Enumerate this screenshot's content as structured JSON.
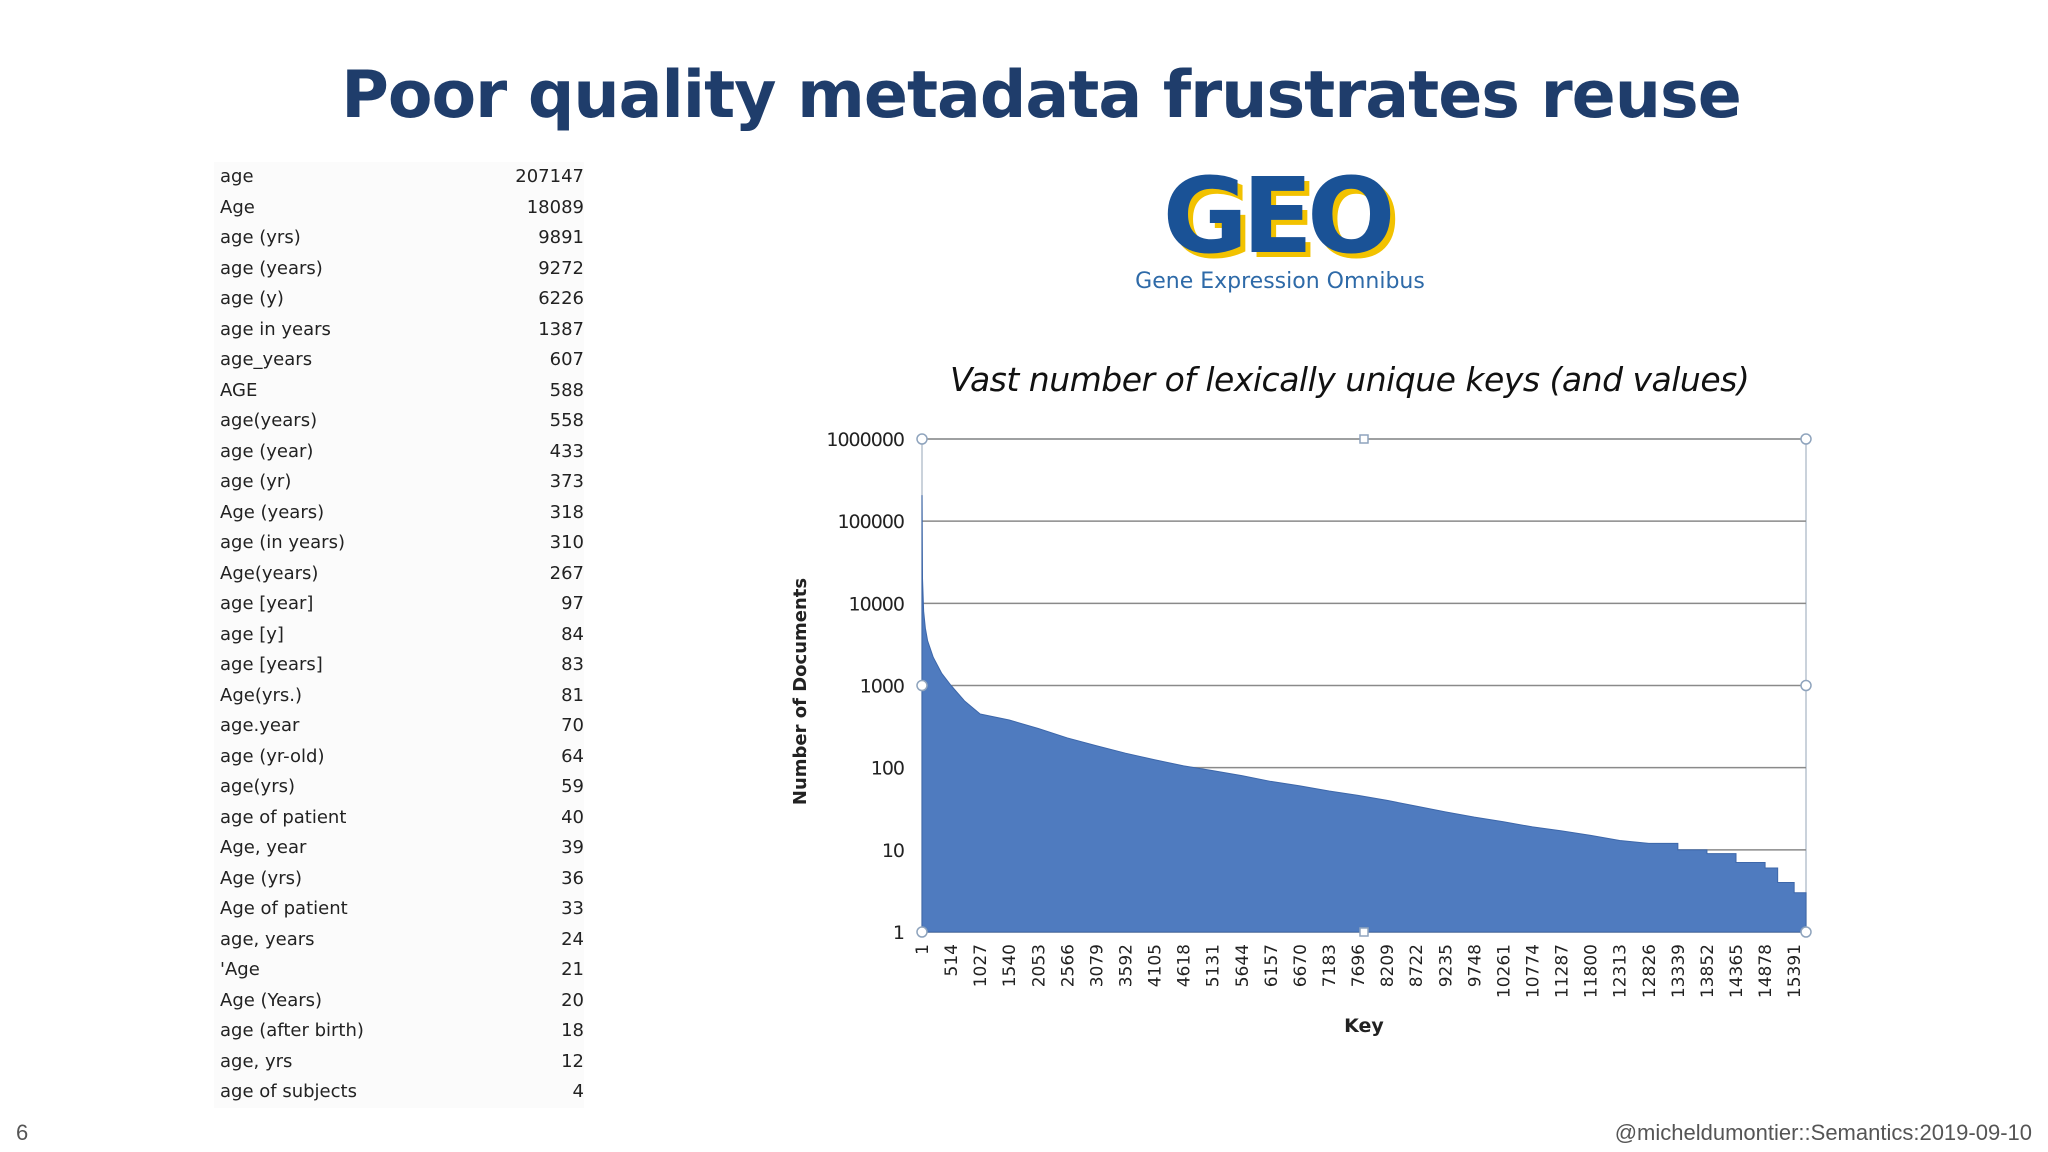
{
  "slide": {
    "title": "Poor quality metadata frustrates reuse",
    "page_number": "6",
    "footer": "@micheldumontier::Semantics:2019-09-10"
  },
  "logo": {
    "wordmark": "GEO",
    "tagline": "Gene Expression Omnibus",
    "colors": {
      "blue": "#1a5296",
      "gold": "#f2c200",
      "tagline": "#2e6aa8"
    }
  },
  "age_table": [
    {
      "key": "age",
      "count": "207147"
    },
    {
      "key": "Age",
      "count": "18089"
    },
    {
      "key": "age (yrs)",
      "count": "9891"
    },
    {
      "key": "age (years)",
      "count": "9272"
    },
    {
      "key": "age (y)",
      "count": "6226"
    },
    {
      "key": "age in years",
      "count": "1387"
    },
    {
      "key": "age_years",
      "count": "607"
    },
    {
      "key": "AGE",
      "count": "588"
    },
    {
      "key": "age(years)",
      "count": "558"
    },
    {
      "key": "age (year)",
      "count": "433"
    },
    {
      "key": "age (yr)",
      "count": "373"
    },
    {
      "key": "Age (years)",
      "count": "318"
    },
    {
      "key": "age (in years)",
      "count": "310"
    },
    {
      "key": "Age(years)",
      "count": "267"
    },
    {
      "key": "age [year]",
      "count": "97"
    },
    {
      "key": "age [y]",
      "count": "84"
    },
    {
      "key": "age [years]",
      "count": "83"
    },
    {
      "key": "Age(yrs.)",
      "count": "81"
    },
    {
      "key": "age.year",
      "count": "70"
    },
    {
      "key": "age (yr-old)",
      "count": "64"
    },
    {
      "key": "age(yrs)",
      "count": "59"
    },
    {
      "key": "age of patient",
      "count": "40"
    },
    {
      "key": "Age, year",
      "count": "39"
    },
    {
      "key": "Age (yrs)",
      "count": "36"
    },
    {
      "key": "Age of patient",
      "count": "33"
    },
    {
      "key": "age, years",
      "count": "24"
    },
    {
      "key": "'Age",
      "count": "21"
    },
    {
      "key": "Age (Years)",
      "count": "20"
    },
    {
      "key": "age (after birth)",
      "count": "18"
    },
    {
      "key": "age, yrs",
      "count": "12"
    },
    {
      "key": "age of subjects",
      "count": "4"
    }
  ],
  "chart_caption": "Vast number of lexically unique keys (and values)",
  "chart_data": {
    "type": "area",
    "title": "",
    "xlabel": "Key",
    "ylabel": "Number of Documents",
    "yscale": "log",
    "ylim": [
      1,
      1000000
    ],
    "xlim": [
      1,
      15600
    ],
    "grid": true,
    "legend": "none",
    "y_ticks": [
      "1",
      "10",
      "100",
      "1000",
      "10000",
      "100000",
      "1000000"
    ],
    "x_ticks": [
      "1",
      "514",
      "1027",
      "1540",
      "2053",
      "2566",
      "3079",
      "3592",
      "4105",
      "4618",
      "5131",
      "5644",
      "6157",
      "6670",
      "7183",
      "7696",
      "8209",
      "8722",
      "9235",
      "9748",
      "10261",
      "10774",
      "11287",
      "11800",
      "12313",
      "12826",
      "13339",
      "13852",
      "14365",
      "14878",
      "15391"
    ],
    "fill_color": "#4f7bbf",
    "series": [
      {
        "x": [
          1,
          10,
          30,
          60,
          100,
          200,
          350,
          514,
          750,
          1027,
          1540,
          2053,
          2566,
          3079,
          3592,
          4105,
          4618,
          5131,
          5644,
          6157,
          6670,
          7183,
          7696,
          8209,
          8722,
          9235,
          9748,
          10261,
          10774,
          11287,
          11800,
          12313,
          12826,
          13339,
          13852,
          14365,
          14878,
          15100,
          15391,
          15600
        ],
        "y": [
          207147,
          20000,
          8000,
          5000,
          3500,
          2200,
          1400,
          1000,
          650,
          450,
          380,
          300,
          230,
          185,
          150,
          125,
          105,
          92,
          80,
          68,
          60,
          52,
          46,
          40,
          34,
          29,
          25,
          22,
          19,
          17,
          15,
          13,
          12,
          10,
          9,
          7,
          6,
          4,
          3,
          2
        ]
      }
    ]
  }
}
